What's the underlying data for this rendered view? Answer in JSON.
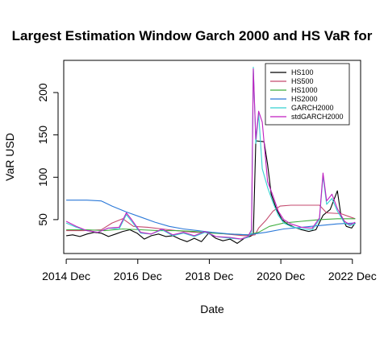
{
  "chart_data": {
    "type": "line",
    "title": "Largest Estimation Window Garch 2000 and HS VaR for",
    "xlabel": "Date",
    "ylabel": "VaR USD",
    "xlim": [
      2014.85,
      2023.15
    ],
    "ylim": [
      10,
      238
    ],
    "x_ticks": [
      2014.92,
      2016.92,
      2018.92,
      2020.92,
      2022.92
    ],
    "x_tick_labels": [
      "2014 Dec",
      "2016 Dec",
      "2018 Dec",
      "2020 Dec",
      "2022 Dec"
    ],
    "y_ticks": [
      50,
      100,
      150,
      200
    ],
    "y_tick_labels": [
      "50",
      "100",
      "150",
      "200"
    ],
    "legend_position": "top-right",
    "series": [
      {
        "name": "HS100",
        "color": "#000000",
        "points": [
          [
            2014.92,
            31
          ],
          [
            2015.1,
            32
          ],
          [
            2015.3,
            30
          ],
          [
            2015.5,
            33
          ],
          [
            2015.7,
            35
          ],
          [
            2015.9,
            34
          ],
          [
            2016.1,
            30
          ],
          [
            2016.3,
            33
          ],
          [
            2016.5,
            36
          ],
          [
            2016.7,
            38
          ],
          [
            2016.9,
            34
          ],
          [
            2017.1,
            27
          ],
          [
            2017.3,
            31
          ],
          [
            2017.5,
            33
          ],
          [
            2017.7,
            30
          ],
          [
            2017.9,
            31
          ],
          [
            2018.1,
            27
          ],
          [
            2018.3,
            24
          ],
          [
            2018.5,
            28
          ],
          [
            2018.7,
            24
          ],
          [
            2018.9,
            34
          ],
          [
            2019.1,
            28
          ],
          [
            2019.3,
            25
          ],
          [
            2019.5,
            27
          ],
          [
            2019.7,
            22
          ],
          [
            2019.9,
            28
          ],
          [
            2020.05,
            30
          ],
          [
            2020.15,
            32
          ],
          [
            2020.22,
            143
          ],
          [
            2020.45,
            142
          ],
          [
            2020.55,
            115
          ],
          [
            2020.65,
            80
          ],
          [
            2020.8,
            62
          ],
          [
            2020.95,
            50
          ],
          [
            2021.1,
            45
          ],
          [
            2021.3,
            41
          ],
          [
            2021.5,
            38
          ],
          [
            2021.7,
            36
          ],
          [
            2021.9,
            38
          ],
          [
            2022.1,
            55
          ],
          [
            2022.3,
            62
          ],
          [
            2022.5,
            84
          ],
          [
            2022.6,
            55
          ],
          [
            2022.75,
            42
          ],
          [
            2022.9,
            40
          ],
          [
            2023.0,
            46
          ]
        ]
      },
      {
        "name": "HS500",
        "color": "#c44a6e",
        "points": [
          [
            2014.92,
            37
          ],
          [
            2015.4,
            37
          ],
          [
            2015.9,
            38
          ],
          [
            2016.2,
            46
          ],
          [
            2016.5,
            51
          ],
          [
            2016.8,
            42
          ],
          [
            2017.2,
            41
          ],
          [
            2017.6,
            39
          ],
          [
            2018.0,
            37
          ],
          [
            2018.5,
            35
          ],
          [
            2018.9,
            35
          ],
          [
            2019.4,
            33
          ],
          [
            2019.9,
            31
          ],
          [
            2020.2,
            32
          ],
          [
            2020.3,
            40
          ],
          [
            2020.5,
            49
          ],
          [
            2020.7,
            60
          ],
          [
            2020.9,
            66
          ],
          [
            2021.2,
            67
          ],
          [
            2021.6,
            67
          ],
          [
            2022.0,
            67
          ],
          [
            2022.2,
            58
          ],
          [
            2022.6,
            57
          ],
          [
            2023.0,
            51
          ]
        ]
      },
      {
        "name": "HS1000",
        "color": "#3fae3f",
        "points": [
          [
            2014.92,
            38
          ],
          [
            2015.5,
            38
          ],
          [
            2016.0,
            37
          ],
          [
            2016.5,
            39
          ],
          [
            2017.0,
            38
          ],
          [
            2017.5,
            37
          ],
          [
            2018.0,
            37
          ],
          [
            2018.5,
            36
          ],
          [
            2019.0,
            34
          ],
          [
            2019.5,
            33
          ],
          [
            2020.0,
            32
          ],
          [
            2020.3,
            35
          ],
          [
            2020.6,
            42
          ],
          [
            2021.0,
            46
          ],
          [
            2021.5,
            48
          ],
          [
            2022.0,
            50
          ],
          [
            2022.5,
            51
          ],
          [
            2023.0,
            51
          ]
        ]
      },
      {
        "name": "HS2000",
        "color": "#2a78d8",
        "points": [
          [
            2014.92,
            73
          ],
          [
            2015.5,
            73
          ],
          [
            2015.9,
            72
          ],
          [
            2016.2,
            66
          ],
          [
            2016.6,
            59
          ],
          [
            2017.0,
            53
          ],
          [
            2017.4,
            47
          ],
          [
            2017.8,
            42
          ],
          [
            2018.2,
            39
          ],
          [
            2018.6,
            37
          ],
          [
            2019.0,
            35
          ],
          [
            2019.5,
            33
          ],
          [
            2020.0,
            32
          ],
          [
            2020.5,
            35
          ],
          [
            2021.0,
            39
          ],
          [
            2021.5,
            41
          ],
          [
            2022.0,
            43
          ],
          [
            2022.5,
            45
          ],
          [
            2023.0,
            46
          ]
        ]
      },
      {
        "name": "GARCH2000",
        "color": "#35d1d1",
        "points": [
          [
            2014.92,
            46
          ],
          [
            2015.2,
            41
          ],
          [
            2015.5,
            37
          ],
          [
            2015.8,
            35
          ],
          [
            2016.1,
            40
          ],
          [
            2016.4,
            39
          ],
          [
            2016.6,
            56
          ],
          [
            2016.75,
            48
          ],
          [
            2017.0,
            34
          ],
          [
            2017.3,
            33
          ],
          [
            2017.6,
            38
          ],
          [
            2017.9,
            31
          ],
          [
            2018.2,
            34
          ],
          [
            2018.5,
            30
          ],
          [
            2018.8,
            35
          ],
          [
            2019.1,
            30
          ],
          [
            2019.5,
            28
          ],
          [
            2019.8,
            27
          ],
          [
            2020.0,
            29
          ],
          [
            2020.1,
            35
          ],
          [
            2020.15,
            230
          ],
          [
            2020.22,
            140
          ],
          [
            2020.3,
            175
          ],
          [
            2020.4,
            110
          ],
          [
            2020.55,
            88
          ],
          [
            2020.7,
            70
          ],
          [
            2020.85,
            55
          ],
          [
            2021.0,
            46
          ],
          [
            2021.2,
            42
          ],
          [
            2021.5,
            39
          ],
          [
            2021.8,
            38
          ],
          [
            2022.0,
            50
          ],
          [
            2022.1,
            102
          ],
          [
            2022.2,
            68
          ],
          [
            2022.35,
            75
          ],
          [
            2022.5,
            60
          ],
          [
            2022.7,
            46
          ],
          [
            2022.85,
            43
          ],
          [
            2023.0,
            45
          ]
        ]
      },
      {
        "name": "stdGARCH2000",
        "color": "#c01fc0",
        "points": [
          [
            2014.92,
            48
          ],
          [
            2015.2,
            42
          ],
          [
            2015.5,
            37
          ],
          [
            2015.8,
            35
          ],
          [
            2016.1,
            40
          ],
          [
            2016.4,
            41
          ],
          [
            2016.6,
            58
          ],
          [
            2016.75,
            50
          ],
          [
            2017.0,
            35
          ],
          [
            2017.3,
            33
          ],
          [
            2017.6,
            39
          ],
          [
            2017.9,
            32
          ],
          [
            2018.2,
            35
          ],
          [
            2018.5,
            31
          ],
          [
            2018.8,
            36
          ],
          [
            2019.1,
            30
          ],
          [
            2019.5,
            29
          ],
          [
            2019.8,
            27
          ],
          [
            2020.0,
            30
          ],
          [
            2020.1,
            38
          ],
          [
            2020.15,
            228
          ],
          [
            2020.22,
            145
          ],
          [
            2020.3,
            178
          ],
          [
            2020.4,
            165
          ],
          [
            2020.55,
            95
          ],
          [
            2020.7,
            78
          ],
          [
            2020.85,
            60
          ],
          [
            2021.0,
            50
          ],
          [
            2021.2,
            45
          ],
          [
            2021.5,
            41
          ],
          [
            2021.8,
            40
          ],
          [
            2022.0,
            52
          ],
          [
            2022.1,
            105
          ],
          [
            2022.2,
            72
          ],
          [
            2022.35,
            80
          ],
          [
            2022.5,
            63
          ],
          [
            2022.7,
            48
          ],
          [
            2022.85,
            44
          ],
          [
            2023.0,
            47
          ]
        ]
      }
    ]
  }
}
